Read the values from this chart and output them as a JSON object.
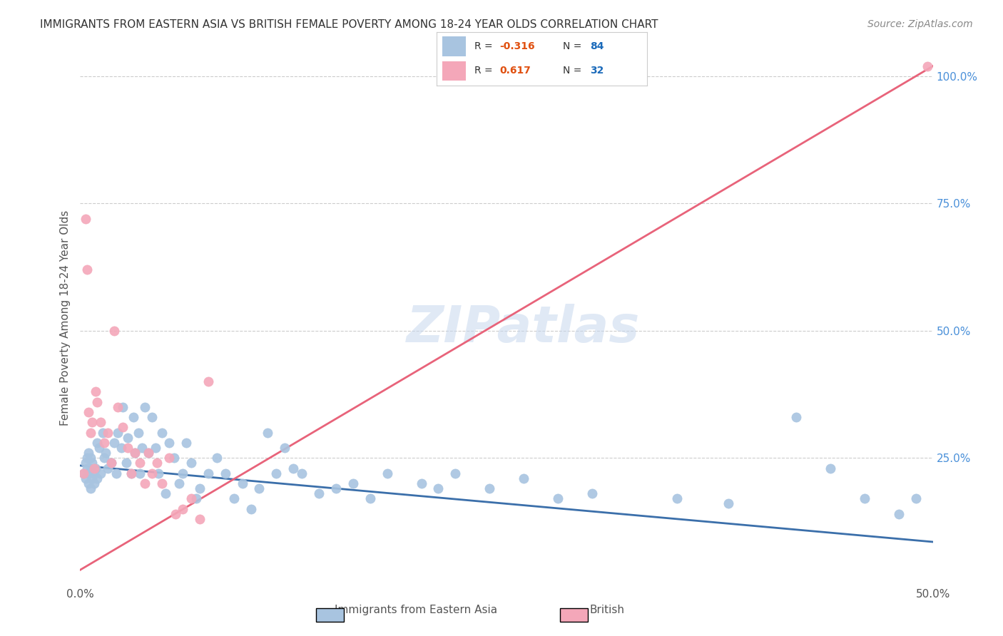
{
  "title": "IMMIGRANTS FROM EASTERN ASIA VS BRITISH FEMALE POVERTY AMONG 18-24 YEAR OLDS CORRELATION CHART",
  "source": "Source: ZipAtlas.com",
  "ylabel": "Female Poverty Among 18-24 Year Olds",
  "xlim": [
    0.0,
    0.5
  ],
  "ylim": [
    0.0,
    1.05
  ],
  "blue_R": -0.316,
  "blue_N": 84,
  "pink_R": 0.617,
  "pink_N": 32,
  "blue_label": "Immigrants from Eastern Asia",
  "pink_label": "British",
  "blue_color": "#a8c4e0",
  "pink_color": "#f4a7b9",
  "blue_line_color": "#3b6faa",
  "pink_line_color": "#e8637a",
  "title_color": "#333333",
  "source_color": "#888888",
  "background_color": "#ffffff",
  "grid_color": "#cccccc",
  "watermark": "ZIPatlas",
  "blue_x": [
    0.002,
    0.003,
    0.003,
    0.004,
    0.004,
    0.005,
    0.005,
    0.005,
    0.006,
    0.006,
    0.006,
    0.007,
    0.007,
    0.008,
    0.008,
    0.009,
    0.01,
    0.01,
    0.011,
    0.012,
    0.013,
    0.014,
    0.015,
    0.016,
    0.018,
    0.02,
    0.021,
    0.022,
    0.024,
    0.025,
    0.027,
    0.028,
    0.03,
    0.031,
    0.032,
    0.034,
    0.035,
    0.036,
    0.038,
    0.04,
    0.042,
    0.044,
    0.046,
    0.048,
    0.05,
    0.052,
    0.055,
    0.058,
    0.06,
    0.062,
    0.065,
    0.068,
    0.07,
    0.075,
    0.08,
    0.085,
    0.09,
    0.095,
    0.1,
    0.105,
    0.11,
    0.115,
    0.12,
    0.125,
    0.13,
    0.14,
    0.15,
    0.16,
    0.17,
    0.18,
    0.2,
    0.21,
    0.22,
    0.24,
    0.26,
    0.28,
    0.3,
    0.35,
    0.38,
    0.42,
    0.44,
    0.46,
    0.48,
    0.49
  ],
  "blue_y": [
    0.22,
    0.24,
    0.21,
    0.25,
    0.23,
    0.2,
    0.26,
    0.22,
    0.19,
    0.23,
    0.25,
    0.21,
    0.24,
    0.22,
    0.2,
    0.23,
    0.28,
    0.21,
    0.27,
    0.22,
    0.3,
    0.25,
    0.26,
    0.23,
    0.24,
    0.28,
    0.22,
    0.3,
    0.27,
    0.35,
    0.24,
    0.29,
    0.22,
    0.33,
    0.26,
    0.3,
    0.22,
    0.27,
    0.35,
    0.26,
    0.33,
    0.27,
    0.22,
    0.3,
    0.18,
    0.28,
    0.25,
    0.2,
    0.22,
    0.28,
    0.24,
    0.17,
    0.19,
    0.22,
    0.25,
    0.22,
    0.17,
    0.2,
    0.15,
    0.19,
    0.3,
    0.22,
    0.27,
    0.23,
    0.22,
    0.18,
    0.19,
    0.2,
    0.17,
    0.22,
    0.2,
    0.19,
    0.22,
    0.19,
    0.21,
    0.17,
    0.18,
    0.17,
    0.16,
    0.33,
    0.23,
    0.17,
    0.14,
    0.17
  ],
  "pink_x": [
    0.002,
    0.003,
    0.004,
    0.005,
    0.006,
    0.007,
    0.008,
    0.009,
    0.01,
    0.012,
    0.014,
    0.016,
    0.018,
    0.02,
    0.022,
    0.025,
    0.028,
    0.03,
    0.032,
    0.035,
    0.038,
    0.04,
    0.042,
    0.045,
    0.048,
    0.052,
    0.056,
    0.06,
    0.065,
    0.07,
    0.075,
    0.497
  ],
  "pink_y": [
    0.22,
    0.72,
    0.62,
    0.34,
    0.3,
    0.32,
    0.23,
    0.38,
    0.36,
    0.32,
    0.28,
    0.3,
    0.24,
    0.5,
    0.35,
    0.31,
    0.27,
    0.22,
    0.26,
    0.24,
    0.2,
    0.26,
    0.22,
    0.24,
    0.2,
    0.25,
    0.14,
    0.15,
    0.17,
    0.13,
    0.4,
    1.02
  ],
  "blue_trend_x": [
    0.0,
    0.5
  ],
  "blue_trend_y": [
    0.235,
    0.085
  ],
  "pink_trend_x": [
    0.0,
    0.5
  ],
  "pink_trend_y": [
    0.03,
    1.02
  ]
}
